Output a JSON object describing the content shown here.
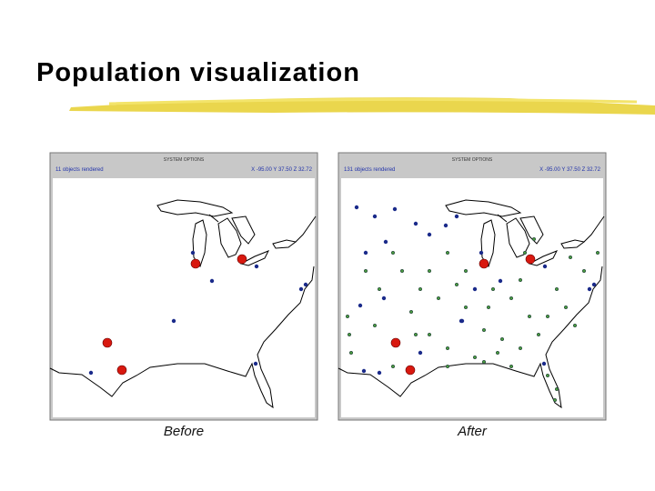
{
  "header": {
    "title": "Population visualization"
  },
  "panels": [
    {
      "window_title": "SYSTEM OPTIONS",
      "status": "11 objects rendered",
      "coords": "X -95.00 Y 37.50 Z 32.72",
      "caption": "Before"
    },
    {
      "window_title": "SYSTEM OPTIONS",
      "status": "131 objects rendered",
      "coords": "X -95.00 Y 37.50 Z 32.72",
      "caption": "After"
    }
  ]
}
